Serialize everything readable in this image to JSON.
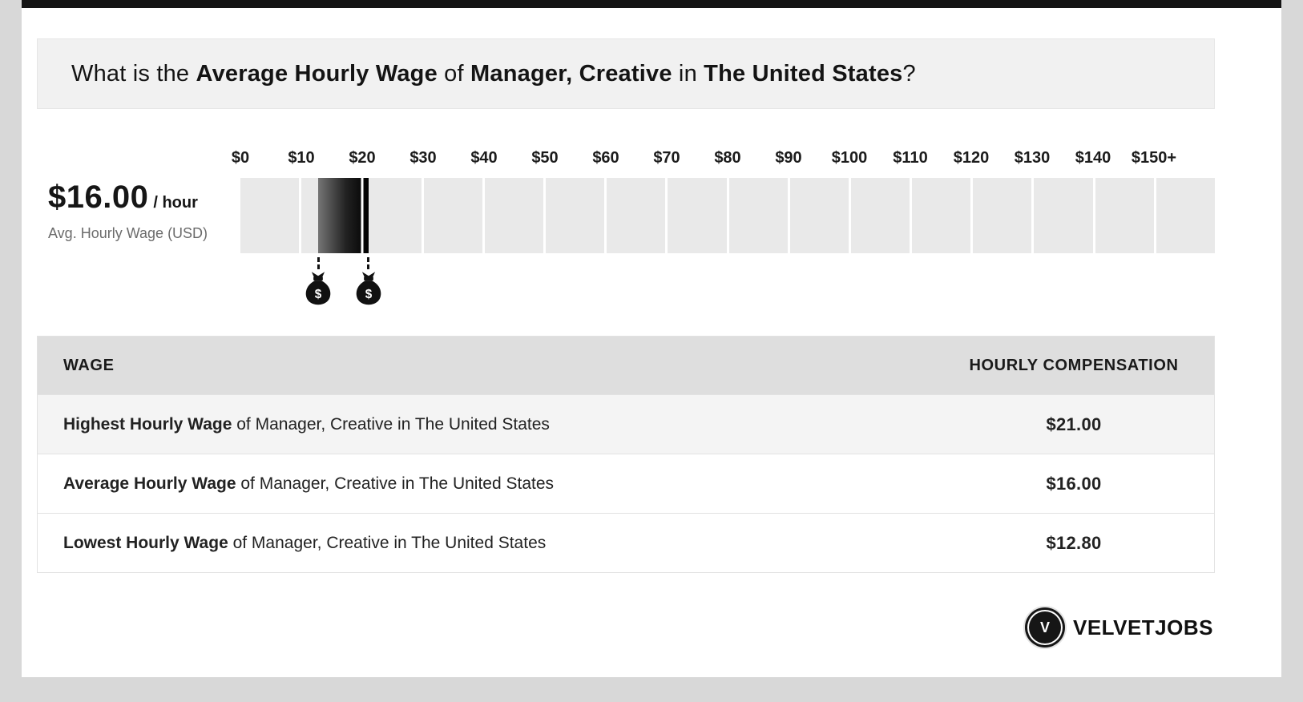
{
  "page": {
    "background_color": "#d8d8d8",
    "card_color": "#ffffff",
    "top_bar_color": "#141414"
  },
  "header": {
    "parts": [
      {
        "text": "What is the ",
        "bold": false
      },
      {
        "text": "Average Hourly Wage",
        "bold": true
      },
      {
        "text": " of ",
        "bold": false
      },
      {
        "text": "Manager, Creative",
        "bold": true
      },
      {
        "text": " in ",
        "bold": false
      },
      {
        "text": "The United States",
        "bold": true
      },
      {
        "text": "?",
        "bold": false
      }
    ]
  },
  "stat": {
    "amount": "$16.00",
    "per": "/ hour",
    "caption": "Avg. Hourly Wage (USD)"
  },
  "chart_data": {
    "type": "bar",
    "title": "What is the Average Hourly Wage of Manager, Creative in The United States?",
    "x_axis_ticks": [
      "$0",
      "$10",
      "$20",
      "$30",
      "$40",
      "$50",
      "$60",
      "$70",
      "$80",
      "$90",
      "$100",
      "$110",
      "$120",
      "$130",
      "$140",
      "$150+"
    ],
    "axis_min": 0,
    "axis_max": 160,
    "unit": "USD per hour",
    "range_bar": {
      "low": 12.8,
      "high": 21.0,
      "average": 16.0
    },
    "segment_color": "#e9e9e9",
    "bar_gradient": [
      "#757575",
      "#000000"
    ],
    "markers": [
      {
        "name": "lowest",
        "value": 12.8,
        "icon": "money-bag-icon"
      },
      {
        "name": "highest",
        "value": 21.0,
        "icon": "money-bag-icon"
      }
    ]
  },
  "table": {
    "headers": [
      "WAGE",
      "HOURLY COMPENSATION"
    ],
    "rows": [
      {
        "label_bold": "Highest Hourly Wage",
        "label_rest": " of Manager, Creative in The United States",
        "value": "$21.00"
      },
      {
        "label_bold": "Average Hourly Wage",
        "label_rest": " of Manager, Creative in The United States",
        "value": "$16.00"
      },
      {
        "label_bold": "Lowest Hourly Wage",
        "label_rest": " of Manager, Creative in The United States",
        "value": "$12.80"
      }
    ]
  },
  "footer": {
    "logo_letter": "V",
    "logo_text": "VELVETJOBS"
  }
}
